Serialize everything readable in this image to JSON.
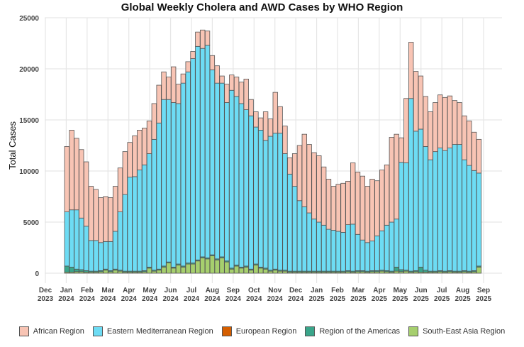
{
  "chart_data": {
    "type": "bar",
    "stacked": true,
    "title": "Global Weekly Cholera and AWD Cases by WHO Region",
    "xlabel": "",
    "ylabel": "Total Cases",
    "ylim": [
      0,
      25000
    ],
    "yticks": [
      "0",
      "5000",
      "10000",
      "15000",
      "20000",
      "25000"
    ],
    "xticks": [
      {
        "month": "Dec",
        "year": "2023"
      },
      {
        "month": "Jan",
        "year": "2024"
      },
      {
        "month": "Feb",
        "year": "2024"
      },
      {
        "month": "Mar",
        "year": "2024"
      },
      {
        "month": "Apr",
        "year": "2024"
      },
      {
        "month": "May",
        "year": "2024"
      },
      {
        "month": "Jun",
        "year": "2024"
      },
      {
        "month": "Jul",
        "year": "2024"
      },
      {
        "month": "Aug",
        "year": "2024"
      },
      {
        "month": "Sep",
        "year": "2024"
      },
      {
        "month": "Oct",
        "year": "2024"
      },
      {
        "month": "Nov",
        "year": "2024"
      },
      {
        "month": "Dec",
        "year": "2024"
      },
      {
        "month": "Jan",
        "year": "2025"
      },
      {
        "month": "Feb",
        "year": "2025"
      },
      {
        "month": "Mar",
        "year": "2025"
      },
      {
        "month": "Apr",
        "year": "2025"
      },
      {
        "month": "May",
        "year": "2025"
      },
      {
        "month": "Jun",
        "year": "2025"
      },
      {
        "month": "Jul",
        "year": "2025"
      },
      {
        "month": "Aug",
        "year": "2025"
      },
      {
        "month": "Sep",
        "year": "2025"
      }
    ],
    "grid": true,
    "legend_position": "bottom",
    "series_order_bottom_to_top": [
      "South-East Asia Region",
      "Region of the Americas",
      "European Region",
      "Eastern Mediterranean Region",
      "African Region"
    ],
    "legend": [
      {
        "name": "African Region",
        "color": "#F8C4B4"
      },
      {
        "name": "Eastern Mediterranean Region",
        "color": "#6DDCF4"
      },
      {
        "name": "European Region",
        "color": "#D55E00"
      },
      {
        "name": "Region of the Americas",
        "color": "#3AA58A"
      },
      {
        "name": "South-East Asia Region",
        "color": "#A6CF6E"
      }
    ],
    "weeks_total": [
      12400,
      14000,
      13200,
      12100,
      10900,
      8500,
      8200,
      7400,
      7500,
      7400,
      8500,
      10300,
      11900,
      12800,
      13500,
      14000,
      14200,
      14900,
      16600,
      18400,
      19700,
      19200,
      20200,
      18500,
      19500,
      20700,
      21700,
      23600,
      23800,
      23700,
      21300,
      20300,
      19300,
      18500,
      19400,
      19200,
      18700,
      19000,
      17000,
      15800,
      15200,
      15800,
      15100,
      17700,
      16300,
      14400,
      11300,
      11700,
      12500,
      13600,
      12600,
      11800,
      11500,
      10400,
      9200,
      8500,
      8700,
      8800,
      9000,
      10700,
      9900,
      9500,
      8500,
      9200,
      9000,
      10100,
      10600,
      13300,
      13100,
      13200,
      17100,
      22600,
      19600,
      18800,
      17200,
      15800,
      16700,
      17400,
      17200,
      17300,
      16900,
      16700,
      15500,
      14900,
      13800,
      13100
    ],
    "series": [
      {
        "name": "South-East Asia Region",
        "values": [
          100,
          100,
          150,
          150,
          100,
          100,
          100,
          150,
          300,
          150,
          300,
          200,
          100,
          100,
          100,
          100,
          150,
          500,
          200,
          300,
          600,
          1000,
          500,
          800,
          600,
          900,
          900,
          1200,
          1500,
          1400,
          1700,
          1300,
          1500,
          1100,
          400,
          700,
          500,
          600,
          300,
          800,
          500,
          400,
          200,
          300,
          200,
          200,
          100,
          100,
          100,
          100,
          100,
          100,
          100,
          100,
          100,
          100,
          100,
          100,
          150,
          100,
          150,
          150,
          100,
          150,
          150,
          200,
          150,
          100,
          200,
          150,
          200,
          100,
          150,
          100,
          100,
          100,
          100,
          150,
          100,
          150,
          100,
          100,
          150,
          100,
          150,
          600
        ]
      },
      {
        "name": "Region of the Americas",
        "values": [
          600,
          500,
          250,
          200,
          150,
          100,
          100,
          100,
          100,
          100,
          100,
          100,
          100,
          100,
          100,
          100,
          100,
          100,
          100,
          100,
          100,
          100,
          100,
          100,
          100,
          100,
          100,
          100,
          100,
          100,
          100,
          100,
          100,
          100,
          100,
          100,
          100,
          100,
          100,
          100,
          100,
          100,
          100,
          100,
          100,
          100,
          100,
          100,
          100,
          100,
          100,
          100,
          100,
          100,
          100,
          100,
          100,
          100,
          100,
          100,
          100,
          100,
          100,
          100,
          100,
          100,
          100,
          100,
          400,
          200,
          100,
          100,
          100,
          500,
          200,
          100,
          100,
          100,
          100,
          100,
          100,
          100,
          100,
          100,
          100,
          100
        ]
      },
      {
        "name": "European Region",
        "values": [
          0,
          0,
          0,
          0,
          0,
          0,
          0,
          0,
          0,
          0,
          0,
          0,
          0,
          0,
          0,
          0,
          0,
          0,
          0,
          0,
          0,
          0,
          0,
          0,
          0,
          0,
          0,
          0,
          0,
          0,
          0,
          0,
          0,
          0,
          0,
          0,
          0,
          0,
          0,
          0,
          0,
          0,
          0,
          0,
          0,
          0,
          0,
          0,
          0,
          0,
          0,
          0,
          0,
          0,
          0,
          0,
          0,
          0,
          0,
          0,
          0,
          0,
          0,
          0,
          0,
          0,
          0,
          0,
          0,
          0,
          0,
          0,
          0,
          0,
          0,
          0,
          0,
          0,
          0,
          0,
          0,
          0,
          0,
          0,
          0,
          0
        ]
      },
      {
        "name": "Eastern Mediterranean Region",
        "values": [
          5300,
          5600,
          5800,
          5050,
          4350,
          3000,
          3000,
          2750,
          2700,
          2850,
          3700,
          5700,
          7500,
          9200,
          9250,
          9900,
          10350,
          11100,
          12800,
          14300,
          16300,
          15900,
          16100,
          15700,
          17900,
          18700,
          20000,
          20900,
          20400,
          20800,
          18100,
          17200,
          17000,
          15500,
          17400,
          16500,
          16000,
          15300,
          15000,
          13400,
          13400,
          12500,
          13100,
          13300,
          13400,
          11400,
          9500,
          8300,
          6900,
          6300,
          5700,
          5100,
          4800,
          4500,
          4100,
          4000,
          3900,
          3800,
          4500,
          4600,
          3550,
          3000,
          2800,
          2900,
          3400,
          3850,
          4450,
          4800,
          4700,
          10500,
          10500,
          16900,
          13650,
          13500,
          12100,
          10900,
          11700,
          12000,
          11800,
          12000,
          12400,
          12400,
          10850,
          10350,
          9800,
          9100
        ]
      },
      {
        "name": "African Region",
        "values": [
          6400,
          7800,
          7000,
          6700,
          6300,
          5300,
          5000,
          4400,
          4400,
          4300,
          4400,
          4300,
          4200,
          3400,
          4000,
          3900,
          3600,
          3200,
          3500,
          3700,
          2700,
          2200,
          3500,
          1900,
          900,
          1000,
          700,
          1400,
          1800,
          1400,
          1400,
          1700,
          700,
          1800,
          1500,
          1900,
          2100,
          3000,
          1600,
          1500,
          1200,
          2800,
          1700,
          4000,
          2600,
          2700,
          1600,
          3200,
          5400,
          7100,
          6700,
          6500,
          6500,
          5700,
          4900,
          4300,
          4600,
          4800,
          4250,
          6000,
          6100,
          6250,
          5500,
          6050,
          5400,
          5950,
          5900,
          8300,
          8300,
          2400,
          6300,
          5500,
          5850,
          5200,
          4900,
          4700,
          4800,
          5200,
          5200,
          5100,
          4300,
          4100,
          4300,
          4350,
          3750,
          3300
        ]
      }
    ]
  },
  "legend_labels": [
    "African Region",
    "Eastern Mediterranean Region",
    "European Region",
    "Region of the Americas",
    "South-East Asia Region"
  ]
}
